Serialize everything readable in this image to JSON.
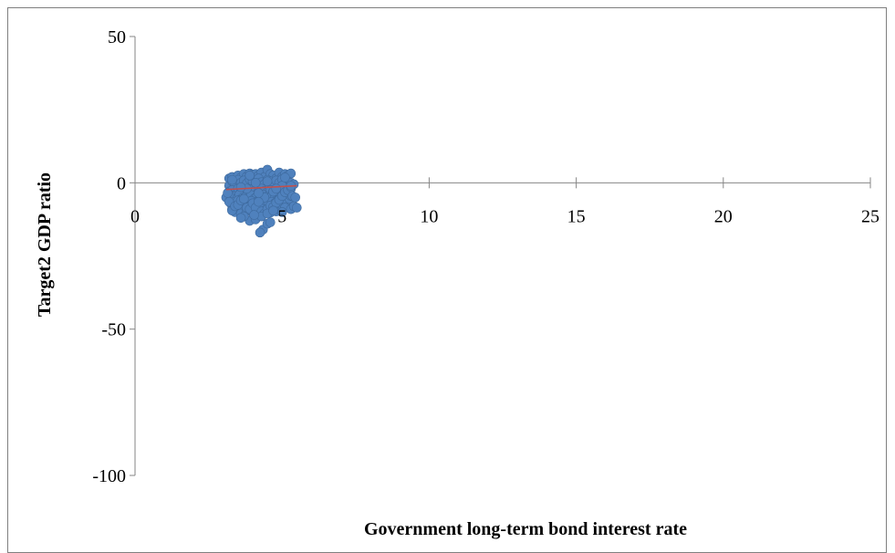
{
  "chart_data": {
    "type": "scatter",
    "title": "",
    "xlabel": "Government long-term bond interest rate",
    "ylabel": "Target2 GDP ratio",
    "xlim": [
      0,
      25
    ],
    "ylim": [
      -100,
      50
    ],
    "x_ticks": [
      0,
      5,
      10,
      15,
      20,
      25
    ],
    "y_ticks": [
      50,
      0,
      -50,
      -100
    ],
    "x_tick_labels": [
      "0",
      "5",
      "10",
      "15",
      "20",
      "25"
    ],
    "y_tick_labels": [
      "50",
      "0",
      "-50",
      "-100"
    ],
    "grid": false,
    "legend": "none",
    "marker_color": "#4F81BD",
    "trendline_color": "#C0504D",
    "trendline": {
      "x": [
        3.1,
        5.5
      ],
      "y": [
        -2.3,
        -1.0
      ]
    },
    "series": [
      {
        "x": [
          3.2,
          3.3,
          3.4,
          3.5,
          3.6,
          3.7,
          3.8,
          3.9,
          4.0,
          4.1,
          4.2,
          4.3,
          4.4,
          4.5,
          4.6,
          4.7,
          4.8,
          4.9,
          5.0,
          5.1,
          5.2,
          5.3,
          3.2,
          3.3,
          3.4,
          3.5,
          3.6,
          3.7,
          3.8,
          3.9,
          4.0,
          4.1,
          4.2,
          4.3,
          4.4,
          4.5,
          4.6,
          4.7,
          4.8,
          4.9,
          5.0,
          5.1,
          5.2,
          5.3,
          3.2,
          3.3,
          3.4,
          3.5,
          3.6,
          3.7,
          3.8,
          3.9,
          4.0,
          4.1,
          4.2,
          4.3,
          4.4,
          4.5,
          4.6,
          4.7,
          4.8,
          4.9,
          5.0,
          5.1,
          5.2,
          5.3,
          3.25,
          3.35,
          3.45,
          3.55,
          3.65,
          3.75,
          3.85,
          3.95,
          4.05,
          4.15,
          4.25,
          4.35,
          4.45,
          4.55,
          4.65,
          4.75,
          4.85,
          4.95,
          5.05,
          5.15,
          5.25,
          3.25,
          3.35,
          3.45,
          3.55,
          3.65,
          3.75,
          3.85,
          3.95,
          4.05,
          4.15,
          4.25,
          4.35,
          4.45,
          4.55,
          4.65,
          4.75,
          4.85,
          4.95,
          5.05,
          5.15,
          5.25,
          3.3,
          3.5,
          3.7,
          3.9,
          4.1,
          4.3,
          4.5,
          4.7,
          4.9,
          5.1,
          5.3,
          3.4,
          3.6,
          3.8,
          4.0,
          4.2,
          4.4,
          4.6,
          4.8,
          5.0,
          3.2,
          3.5,
          3.8,
          4.1,
          4.4,
          4.7,
          5.0,
          5.3,
          3.3,
          3.6,
          3.9,
          4.2,
          4.5,
          4.8,
          5.1,
          3.1,
          3.15,
          3.2,
          3.3,
          3.4,
          3.5,
          3.6,
          3.7,
          3.8,
          3.9,
          4.0,
          4.1,
          4.2,
          4.3,
          4.4,
          4.5,
          4.6,
          4.7,
          4.8,
          4.9,
          5.0,
          5.1,
          5.2,
          5.3,
          5.4,
          3.9,
          4.1,
          4.3,
          4.5,
          4.35,
          4.25,
          4.05,
          4.5,
          4.6,
          5.4,
          5.5,
          5.35,
          5.45,
          4.7,
          5.3,
          3.7,
          3.6
        ],
        "y": [
          1.5,
          2.0,
          1.0,
          2.5,
          1.8,
          3.0,
          2.2,
          3.2,
          2.8,
          3.0,
          2.5,
          3.5,
          2.0,
          4.5,
          3.0,
          2.5,
          1.5,
          3.5,
          2.0,
          3.0,
          2.5,
          3.2,
          -1.0,
          0.5,
          -0.5,
          1.0,
          0.0,
          0.8,
          -0.2,
          1.2,
          0.5,
          -0.8,
          1.5,
          0.2,
          -0.5,
          1.0,
          0.5,
          -1.0,
          0.8,
          0.0,
          1.2,
          -0.5,
          0.5,
          0.0,
          -3.0,
          -2.5,
          -3.5,
          -2.0,
          -3.2,
          -2.8,
          -3.0,
          -2.2,
          -3.5,
          -2.5,
          -3.0,
          -2.0,
          -2.8,
          -3.2,
          -2.5,
          -3.0,
          -2.0,
          -2.5,
          -1.8,
          -2.2,
          -1.5,
          -2.0,
          -5.0,
          -4.5,
          -5.5,
          -4.0,
          -5.2,
          -4.8,
          -5.0,
          -4.2,
          -5.5,
          -4.5,
          -5.0,
          -4.0,
          -4.8,
          -5.2,
          -4.5,
          -5.0,
          -4.0,
          -4.5,
          -3.8,
          -4.2,
          -3.5,
          -7.0,
          -6.5,
          -7.5,
          -6.0,
          -7.2,
          -6.8,
          -7.0,
          -6.2,
          -7.5,
          -6.5,
          -7.0,
          -6.0,
          -6.8,
          -7.2,
          -6.5,
          -7.0,
          -6.0,
          -6.5,
          -5.8,
          -6.2,
          -5.5,
          -9.0,
          -8.5,
          -9.5,
          -8.0,
          -9.2,
          -8.8,
          -9.0,
          -8.2,
          -9.5,
          -8.5,
          -9.0,
          -10.0,
          -10.5,
          -9.8,
          -10.2,
          -10.0,
          -9.5,
          -10.2,
          -9.8,
          -10.0,
          -4.0,
          -6.0,
          -2.0,
          0.0,
          -5.0,
          -3.0,
          -1.0,
          -4.5,
          1.0,
          -1.5,
          2.5,
          -3.5,
          0.5,
          -2.0,
          1.8,
          -5.0,
          -3.5,
          -6.5,
          -9.5,
          -8.0,
          -7.5,
          -6.0,
          -5.5,
          -8.5,
          -9.0,
          -7.0,
          -8.5,
          -6.5,
          -9.8,
          -10.5,
          -9.0,
          -7.8,
          -8.2,
          -6.8,
          -5.8,
          -4.5,
          -3.2,
          -2.5,
          -1.5,
          -0.5,
          -13.0,
          -12.5,
          -11.5,
          -10.5,
          -16.0,
          -17.0,
          -11.0,
          -14.0,
          -13.5,
          -8.0,
          -8.5,
          -4.5,
          -5.0,
          -9.5,
          -1.0,
          -11.5,
          -12.0
        ]
      }
    ]
  }
}
